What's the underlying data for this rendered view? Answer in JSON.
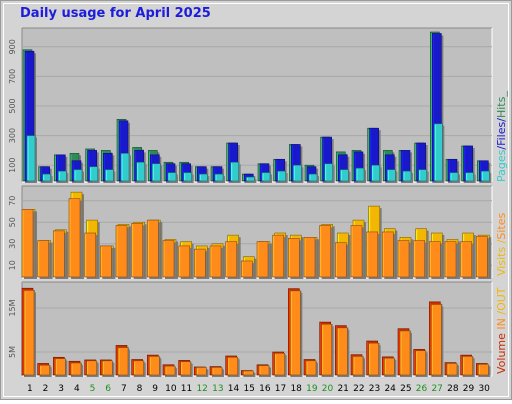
{
  "title": "Daily usage for April 2025",
  "colors": {
    "pages": "#33cccc",
    "files": "#1919cc",
    "hits": "#2e8b57",
    "visits": "#f2b705",
    "sites": "#ff8c1a",
    "in": "#ff8c1a",
    "out": "#cc2a00",
    "panel": "#bfbfbf",
    "frame": "#9a9a9a",
    "weekend": "#1f8f1f",
    "weekday": "#000000"
  },
  "panels": {
    "top": {
      "label_parts": [
        {
          "text": "Pages",
          "color": "#33cccc"
        },
        {
          "text": "/",
          "color": "#1919cc"
        },
        {
          "text": "Files",
          "color": "#1919cc"
        },
        {
          "text": "/",
          "color": "#1919cc"
        },
        {
          "text": "Hits_",
          "color": "#2e8b57"
        }
      ],
      "ticks": [
        "100",
        "300",
        "500",
        "700",
        "900"
      ]
    },
    "middle": {
      "label_parts": [
        {
          "text": "Visits",
          "color": "#f2b705"
        },
        {
          "text": " /",
          "color": "#f2b705"
        },
        {
          "text": "Sites",
          "color": "#ff8c1a"
        }
      ],
      "ticks": [
        "10",
        "30",
        "50",
        "70"
      ]
    },
    "bottom": {
      "label_parts": [
        {
          "text": "Volume",
          "color": "#cc2a00"
        },
        {
          "text": "  IN ",
          "color": "#ff8c1a"
        },
        {
          "text": "/OUT",
          "color": "#f2b705"
        }
      ],
      "ticks": [
        "5M",
        "15M"
      ]
    }
  },
  "day_labels": [
    "1",
    "2",
    "3",
    "4",
    "5",
    "6",
    "7",
    "8",
    "9",
    "10",
    "11",
    "12",
    "13",
    "14",
    "15",
    "16",
    "17",
    "18",
    "19",
    "20",
    "21",
    "22",
    "23",
    "24",
    "25",
    "26",
    "27",
    "28",
    "29",
    "30"
  ],
  "weekend_days": [
    5,
    6,
    12,
    13,
    19,
    20,
    26,
    27
  ],
  "chart_data": [
    {
      "type": "bar",
      "title": "",
      "xlabel": "",
      "ylabel": "Pages /Files /Hits_",
      "ylim": [
        0,
        1000
      ],
      "categories": [
        "1",
        "2",
        "3",
        "4",
        "5",
        "6",
        "7",
        "8",
        "9",
        "10",
        "11",
        "12",
        "13",
        "14",
        "15",
        "16",
        "17",
        "18",
        "19",
        "20",
        "21",
        "22",
        "23",
        "24",
        "25",
        "26",
        "27",
        "28",
        "29",
        "30"
      ],
      "series": [
        {
          "name": "Hits",
          "values": [
            880,
            90,
            170,
            180,
            210,
            200,
            410,
            220,
            200,
            120,
            120,
            90,
            90,
            250,
            40,
            110,
            140,
            240,
            100,
            290,
            190,
            200,
            350,
            200,
            200,
            250,
            1000,
            140,
            230,
            130
          ]
        },
        {
          "name": "Files",
          "values": [
            870,
            90,
            170,
            130,
            200,
            180,
            400,
            200,
            170,
            110,
            110,
            90,
            90,
            250,
            40,
            110,
            140,
            240,
            90,
            290,
            170,
            190,
            350,
            170,
            200,
            250,
            990,
            140,
            230,
            130
          ]
        },
        {
          "name": "Pages",
          "values": [
            300,
            40,
            60,
            70,
            90,
            70,
            180,
            120,
            110,
            50,
            50,
            40,
            40,
            120,
            20,
            50,
            60,
            100,
            40,
            110,
            70,
            80,
            100,
            70,
            60,
            70,
            380,
            50,
            50,
            60
          ]
        }
      ]
    },
    {
      "type": "bar",
      "title": "",
      "xlabel": "",
      "ylabel": "Visits /Sites",
      "ylim": [
        0,
        80
      ],
      "categories": [
        "1",
        "2",
        "3",
        "4",
        "5",
        "6",
        "7",
        "8",
        "9",
        "10",
        "11",
        "12",
        "13",
        "14",
        "15",
        "16",
        "17",
        "18",
        "19",
        "20",
        "21",
        "22",
        "23",
        "24",
        "25",
        "26",
        "27",
        "28",
        "29",
        "30"
      ],
      "series": [
        {
          "name": "Visits",
          "values": [
            62,
            33,
            43,
            78,
            52,
            28,
            48,
            50,
            52,
            34,
            32,
            28,
            30,
            38,
            18,
            32,
            40,
            38,
            36,
            48,
            40,
            52,
            65,
            44,
            36,
            44,
            40,
            34,
            40,
            38
          ]
        },
        {
          "name": "Sites",
          "values": [
            62,
            33,
            42,
            72,
            40,
            28,
            47,
            49,
            52,
            33,
            28,
            25,
            28,
            32,
            14,
            32,
            38,
            35,
            36,
            47,
            31,
            47,
            41,
            41,
            33,
            33,
            32,
            32,
            32,
            37
          ]
        }
      ]
    },
    {
      "type": "bar",
      "title": "",
      "xlabel": "",
      "ylabel": "Volume IN /OUT",
      "ylim": [
        0,
        20
      ],
      "categories": [
        "1",
        "2",
        "3",
        "4",
        "5",
        "6",
        "7",
        "8",
        "9",
        "10",
        "11",
        "12",
        "13",
        "14",
        "15",
        "16",
        "17",
        "18",
        "19",
        "20",
        "21",
        "22",
        "23",
        "24",
        "25",
        "26",
        "27",
        "28",
        "29",
        "30"
      ],
      "series": [
        {
          "name": "OUT",
          "values": [
            19.5,
            2.4,
            3.8,
            2.9,
            3.2,
            3.2,
            6.5,
            3.3,
            4.3,
            2.1,
            3.1,
            1.6,
            1.7,
            4.1,
            0.8,
            2.1,
            5.0,
            19.4,
            3.3,
            11.8,
            11.0,
            4.4,
            7.5,
            3.9,
            10.3,
            5.6,
            16.4,
            2.6,
            4.3,
            2.4
          ]
        },
        {
          "name": "IN",
          "values": [
            19.0,
            2.0,
            3.5,
            2.5,
            3.0,
            3.0,
            6.0,
            3.0,
            4.0,
            1.8,
            2.8,
            1.5,
            1.5,
            3.8,
            0.7,
            1.9,
            4.7,
            18.9,
            3.0,
            11.3,
            10.5,
            4.0,
            7.0,
            3.6,
            9.8,
            5.3,
            15.8,
            2.4,
            4.0,
            2.2
          ]
        }
      ]
    }
  ]
}
